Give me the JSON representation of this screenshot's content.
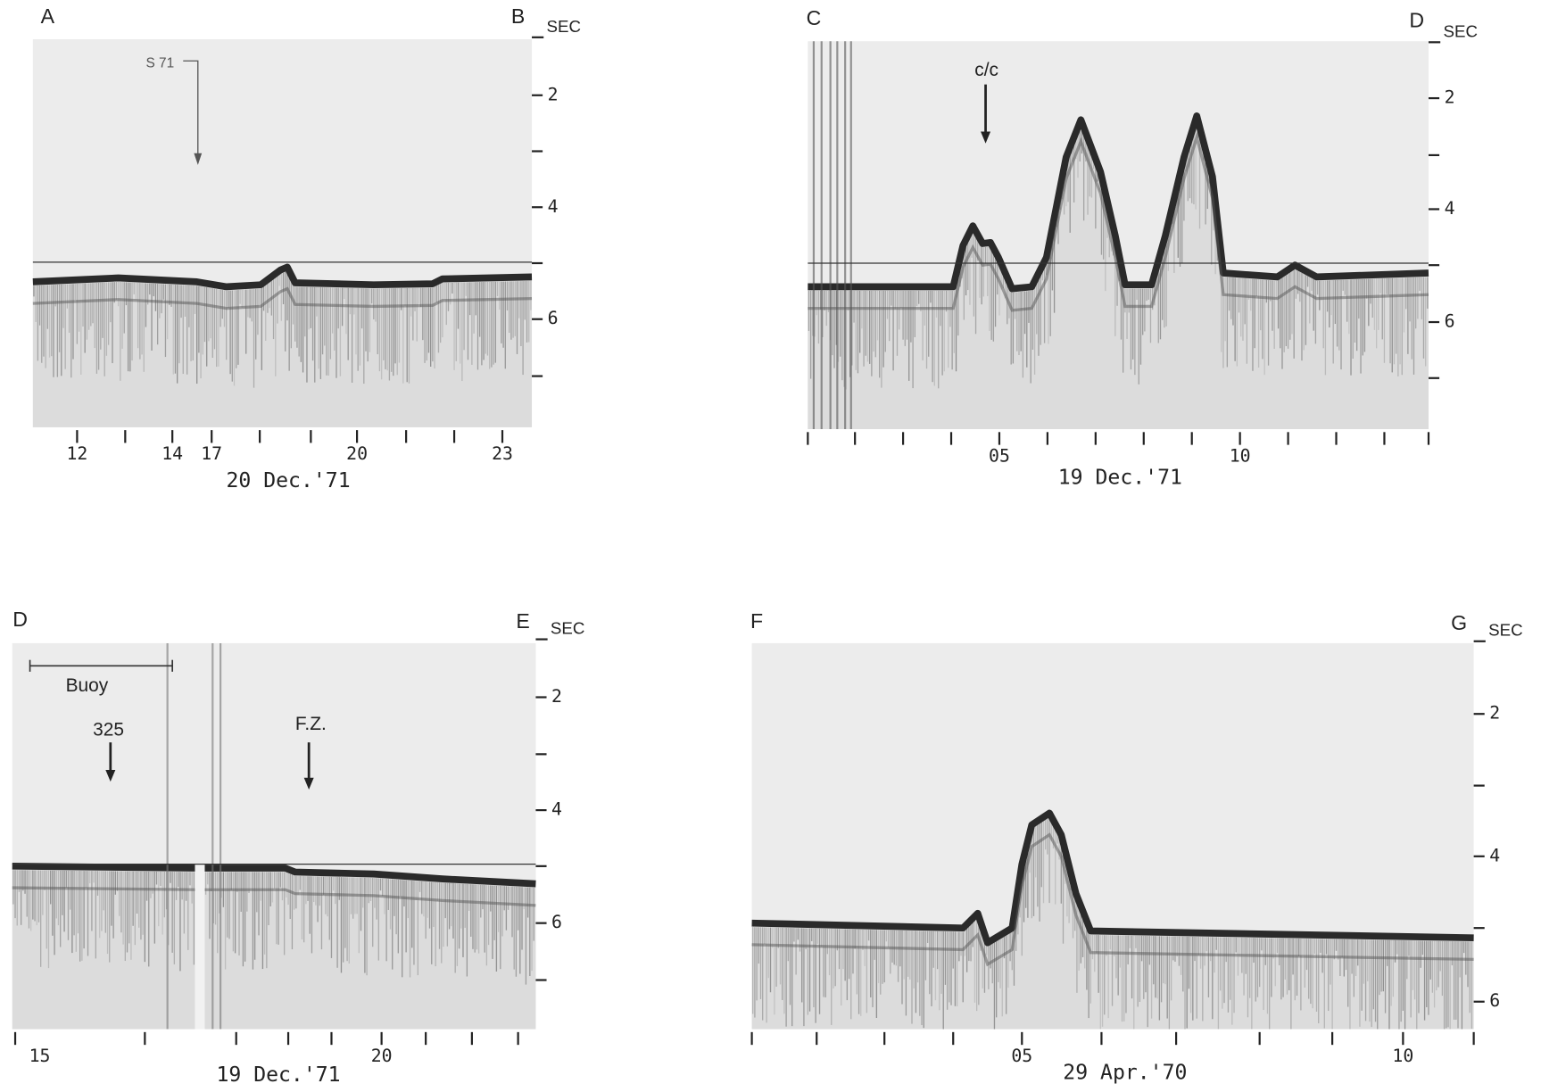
{
  "panels": [
    {
      "corner_labels": [
        "A",
        "B"
      ],
      "axis_unit": "SEC",
      "depth_labels": [
        2,
        4,
        6
      ],
      "time_labels": [
        "12",
        "14",
        "17",
        "20",
        "23"
      ],
      "date": "20 Dec.'71",
      "annotations": [
        "S 71"
      ]
    },
    {
      "corner_labels": [
        "C",
        "D"
      ],
      "axis_unit": "SEC",
      "depth_labels": [
        2,
        4,
        6
      ],
      "time_labels": [
        "05",
        "10"
      ],
      "date": "19 Dec.'71",
      "annotations": [
        "c/c"
      ]
    },
    {
      "corner_labels": [
        "D",
        "E"
      ],
      "axis_unit": "SEC",
      "depth_labels": [
        2,
        4,
        6
      ],
      "time_labels": [
        "15",
        "20"
      ],
      "date": "19 Dec.'71",
      "annotations": [
        "Buoy",
        "325",
        "F.Z."
      ]
    },
    {
      "corner_labels": [
        "F",
        "G"
      ],
      "axis_unit": "SEC",
      "depth_labels": [
        2,
        4,
        6
      ],
      "time_labels": [
        "05",
        "10"
      ],
      "date": "29 Apr.'70",
      "annotations": []
    }
  ]
}
